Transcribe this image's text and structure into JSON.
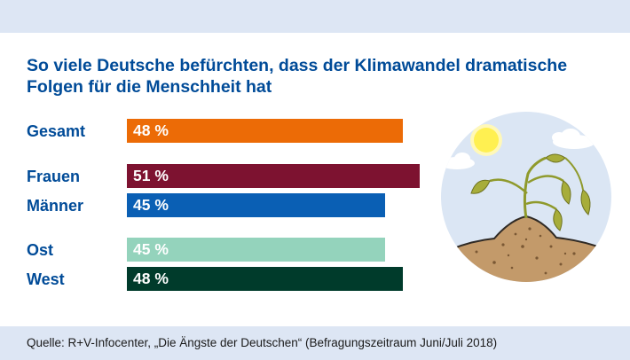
{
  "chart_data": {
    "type": "bar",
    "orientation": "horizontal",
    "title_line1": "So viele Deutsche befürchten, dass der Klimawandel dramatische",
    "title_line2": "Folgen für die Menschheit hat",
    "categories": [
      "Gesamt",
      "Frauen",
      "Männer",
      "Ost",
      "West"
    ],
    "values": [
      48,
      51,
      45,
      45,
      48
    ],
    "value_labels": [
      "48 %",
      "51 %",
      "45 %",
      "45 %",
      "48 %"
    ],
    "colors": [
      "#ec6b06",
      "#7d1230",
      "#0a5fb4",
      "#94d3bc",
      "#003b2b"
    ],
    "groups": [
      [
        "Gesamt"
      ],
      [
        "Frauen",
        "Männer"
      ],
      [
        "Ost",
        "West"
      ]
    ],
    "xlim": [
      0,
      51
    ]
  },
  "footer": {
    "source": "Quelle: R+V-Infocenter, „Die Ängste der Deutschen“ (Befragungszeitraum Juni/Juli 2018)"
  },
  "illustration": {
    "icon": "wilting-plant-icon",
    "colors": {
      "circle": "#dbe6f4",
      "sun": "#fff051",
      "plant": "#a7ad3a",
      "soil": "#c39a6a"
    }
  }
}
